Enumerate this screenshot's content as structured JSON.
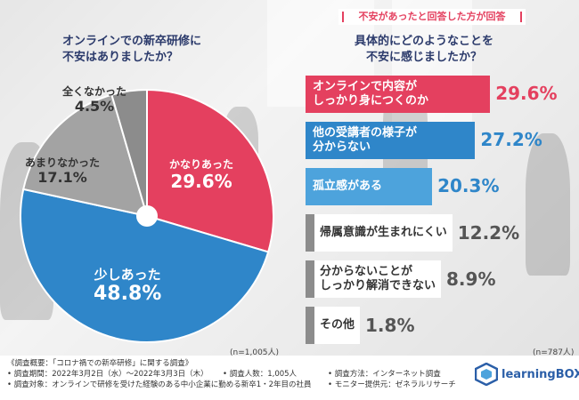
{
  "left_question": {
    "line1": "オンラインでの新卒研修に",
    "line2": "不安はありましたか？"
  },
  "right_header": "不安があったと回答した方が回答",
  "right_question": {
    "line1": "具体的にどのようなことを",
    "line2": "不安に感じましたか？"
  },
  "pie_n": "(n=1,005人)",
  "bar_n": "(n=787人)",
  "colors": {
    "pink": "#e4405f",
    "blue": "#2f86c9",
    "light_blue": "#4da3dc",
    "gray": "#8c8c8c",
    "light_gray": "#a3a3a3",
    "dark_text": "#2b3a6b"
  },
  "chart_data": [
    {
      "type": "pie",
      "title": "オンラインでの新卒研修に不安はありましたか？",
      "slices": [
        {
          "label": "かなりあった",
          "value": 29.6,
          "pct_label": "29.6%",
          "color": "#e4405f"
        },
        {
          "label": "少しあった",
          "value": 48.8,
          "pct_label": "48.8%",
          "color": "#2f86c9"
        },
        {
          "label": "あまりなかった",
          "value": 17.1,
          "pct_label": "17.1%",
          "color": "#a3a3a3"
        },
        {
          "label": "全くなかった",
          "value": 4.5,
          "pct_label": "4.5%",
          "color": "#8c8c8c"
        }
      ]
    },
    {
      "type": "bar",
      "orientation": "horizontal",
      "title": "具体的にどのようなことを不安に感じましたか？",
      "categories": [
        "オンラインで内容が\nしっかり身につくのか",
        "他の受講者の様子が\n分からない",
        "孤立感がある",
        "帰属意識が生まれにくい",
        "分からないことが\nしっかり解消できない",
        "その他"
      ],
      "values": [
        29.6,
        27.2,
        20.3,
        12.2,
        8.9,
        1.8
      ],
      "value_labels": [
        "29.6%",
        "27.2%",
        "20.3%",
        "12.2%",
        "8.9%",
        "1.8%"
      ],
      "bar_colors": [
        "#e4405f",
        "#2f86c9",
        "#4da3dc",
        "#8c8c8c",
        "#8c8c8c",
        "#8c8c8c"
      ],
      "value_colors": [
        "#e4405f",
        "#2f86c9",
        "#2f86c9",
        "#555555",
        "#555555",
        "#555555"
      ]
    }
  ],
  "footer": {
    "survey_title": "《調査概要：「コロナ禍での新卒研修」に関する調査》",
    "period": "• 調査期間：2022年3月2日（水）〜2022年3月3日（木）",
    "respondents": "• 調査人数：1,005人",
    "method": "• 調査方法：インターネット調査",
    "target": "• 調査対象：オンラインで研修を受けた経験のある中小企業に勤める新卒1・2年目の社員",
    "provider": "• モニター提供元：ゼネラルリサーチ",
    "logo": "learningBOX"
  }
}
